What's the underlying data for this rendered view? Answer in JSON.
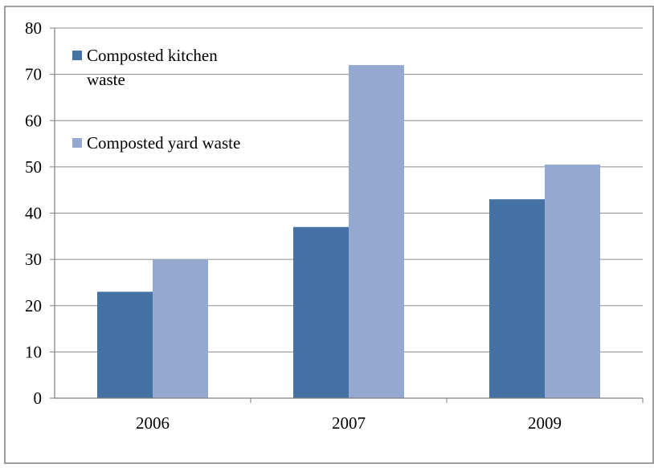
{
  "page": {
    "cropped_heading": ""
  },
  "chart_data": {
    "type": "bar",
    "categories": [
      "2006",
      "2007",
      "2009"
    ],
    "series": [
      {
        "name": "Composted kitchen waste",
        "values": [
          23,
          37,
          43
        ],
        "color": "#4472a4"
      },
      {
        "name": "Composted yard waste",
        "values": [
          30,
          72,
          50.5
        ],
        "color": "#95a9d0"
      }
    ],
    "legend_lines": [
      [
        "Composted kitchen",
        "waste"
      ],
      [
        "Composted yard waste"
      ]
    ],
    "yticks": [
      "0",
      "10",
      "20",
      "30",
      "40",
      "50",
      "60",
      "70",
      "80"
    ],
    "ylim": [
      0,
      80
    ],
    "title": "",
    "xlabel": "",
    "ylabel": "",
    "grid": true,
    "legend_position": "top-left",
    "colors": {
      "grid": "#8c8c8c",
      "axis": "#7f7f7f",
      "frame": "#7f7f7f",
      "text": "#000000"
    }
  }
}
